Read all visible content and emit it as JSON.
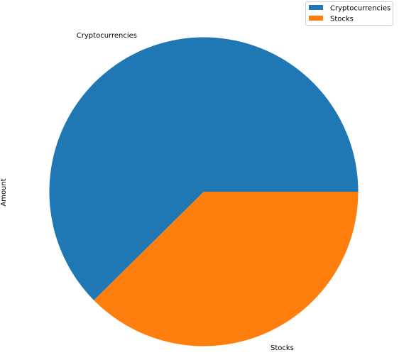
{
  "chart_data": {
    "type": "pie",
    "ylabel": "Amount",
    "categories": [
      "Cryptocurrencies",
      "Stocks"
    ],
    "values": [
      62.4,
      37.6
    ],
    "colors": [
      "#1f77b4",
      "#ff7f0e"
    ],
    "legend": {
      "placement": "top-right",
      "entries": [
        "Cryptocurrencies",
        "Stocks"
      ]
    }
  }
}
